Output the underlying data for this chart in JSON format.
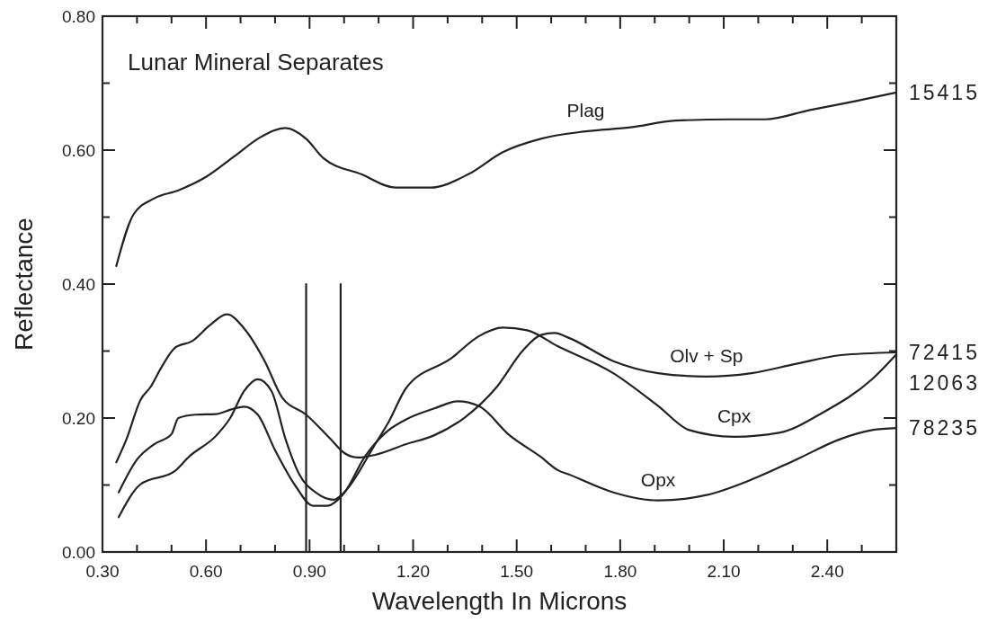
{
  "chart_data": {
    "type": "line",
    "title": "Lunar Mineral Separates",
    "xlabel": "Wavelength In Microns",
    "ylabel": "Reflectance",
    "xlim": [
      0.3,
      2.6
    ],
    "ylim": [
      0,
      0.8
    ],
    "xticks": [
      {
        "value": 0.3,
        "label": "0.30"
      },
      {
        "value": 0.4,
        "label": null
      },
      {
        "value": 0.5,
        "label": null
      },
      {
        "value": 0.6,
        "label": "0.60"
      },
      {
        "value": 0.7,
        "label": null
      },
      {
        "value": 0.8,
        "label": null
      },
      {
        "value": 0.9,
        "label": "0.90"
      },
      {
        "value": 1.0,
        "label": null
      },
      {
        "value": 1.1,
        "label": null
      },
      {
        "value": 1.2,
        "label": "1.20"
      },
      {
        "value": 1.3,
        "label": null
      },
      {
        "value": 1.4,
        "label": null
      },
      {
        "value": 1.5,
        "label": "1.50"
      },
      {
        "value": 1.6,
        "label": null
      },
      {
        "value": 1.7,
        "label": null
      },
      {
        "value": 1.8,
        "label": "1.80"
      },
      {
        "value": 1.9,
        "label": null
      },
      {
        "value": 2.0,
        "label": null
      },
      {
        "value": 2.1,
        "label": "2.10"
      },
      {
        "value": 2.2,
        "label": null
      },
      {
        "value": 2.3,
        "label": null
      },
      {
        "value": 2.4,
        "label": "2.40"
      },
      {
        "value": 2.5,
        "label": null
      }
    ],
    "yticks": [
      {
        "value": 0,
        "label": "0.00"
      },
      {
        "value": 0.1,
        "label": null
      },
      {
        "value": 0.2,
        "label": "0.20"
      },
      {
        "value": 0.3,
        "label": null
      },
      {
        "value": 0.4,
        "label": "0.40"
      },
      {
        "value": 0.5,
        "label": null
      },
      {
        "value": 0.6,
        "label": "0.60"
      },
      {
        "value": 0.7,
        "label": null
      },
      {
        "value": 0.8,
        "label": "0.80"
      }
    ],
    "grid": false,
    "marker": "none",
    "line_style": "solid",
    "series": [
      {
        "name": "Plag",
        "color": "#222222",
        "x": [
          0.34,
          0.39,
          0.45,
          0.52,
          0.6,
          0.68,
          0.76,
          0.83,
          0.89,
          0.94,
          1.05,
          1.15,
          1.25,
          1.36,
          1.46,
          1.57,
          1.7,
          1.83,
          1.96,
          2.12,
          2.22,
          2.35,
          2.48,
          2.6
        ],
        "values": [
          0.427,
          0.504,
          0.528,
          0.54,
          0.56,
          0.59,
          0.62,
          0.633,
          0.617,
          0.588,
          0.564,
          0.544,
          0.544,
          0.564,
          0.597,
          0.617,
          0.628,
          0.634,
          0.644,
          0.646,
          0.646,
          0.66,
          0.673,
          0.686
        ]
      },
      {
        "name": "Olv + Sp",
        "color": "#222222",
        "x": [
          0.34,
          0.37,
          0.41,
          0.44,
          0.47,
          0.51,
          0.56,
          0.61,
          0.66,
          0.71,
          0.77,
          0.82,
          0.89,
          0.96,
          1.0,
          1.04,
          1.09,
          1.18,
          1.26,
          1.35,
          1.44,
          1.52,
          1.57,
          1.61,
          1.65,
          1.78,
          1.91,
          2.05,
          2.18,
          2.31,
          2.44,
          2.6
        ],
        "values": [
          0.134,
          0.169,
          0.227,
          0.247,
          0.275,
          0.305,
          0.315,
          0.338,
          0.355,
          0.334,
          0.285,
          0.231,
          0.205,
          0.169,
          0.148,
          0.141,
          0.145,
          0.161,
          0.174,
          0.201,
          0.245,
          0.302,
          0.324,
          0.327,
          0.32,
          0.285,
          0.267,
          0.262,
          0.267,
          0.281,
          0.294,
          0.298
        ]
      },
      {
        "name": "Cpx",
        "color": "#222222",
        "x": [
          0.347,
          0.41,
          0.51,
          0.55,
          0.63,
          0.67,
          0.71,
          0.75,
          0.79,
          0.83,
          0.87,
          0.92,
          0.97,
          1.0,
          1.09,
          1.13,
          1.18,
          1.31,
          1.39,
          1.46,
          1.53,
          1.62,
          1.78,
          1.91,
          2.0,
          2.13,
          2.26,
          2.39,
          2.53,
          2.6
        ],
        "values": [
          0.052,
          0.101,
          0.121,
          0.142,
          0.174,
          0.2,
          0.24,
          0.258,
          0.24,
          0.169,
          0.116,
          0.088,
          0.078,
          0.089,
          0.161,
          0.195,
          0.245,
          0.289,
          0.322,
          0.335,
          0.331,
          0.307,
          0.267,
          0.218,
          0.182,
          0.172,
          0.178,
          0.209,
          0.258,
          0.295
        ]
      },
      {
        "name": "Opx",
        "color": "#222222",
        "x": [
          0.347,
          0.4,
          0.45,
          0.5,
          0.52,
          0.57,
          0.63,
          0.68,
          0.71,
          0.75,
          0.8,
          0.86,
          0.91,
          0.95,
          1.0,
          1.06,
          1.12,
          1.18,
          1.26,
          1.33,
          1.39,
          1.48,
          1.57,
          1.62,
          1.65,
          1.78,
          1.91,
          2.05,
          2.18,
          2.31,
          2.44,
          2.53,
          2.6
        ],
        "values": [
          0.089,
          0.138,
          0.161,
          0.176,
          0.2,
          0.205,
          0.206,
          0.214,
          0.217,
          0.205,
          0.152,
          0.098,
          0.069,
          0.069,
          0.088,
          0.142,
          0.178,
          0.198,
          0.214,
          0.225,
          0.218,
          0.174,
          0.142,
          0.122,
          0.116,
          0.089,
          0.077,
          0.085,
          0.108,
          0.138,
          0.169,
          0.182,
          0.185
        ]
      },
      {
        "color": "#222222",
        "x": [
          0.89,
          0.89
        ],
        "values": [
          0,
          0.4
        ]
      },
      {
        "color": "#222222",
        "x": [
          0.99,
          0.99
        ],
        "values": [
          0,
          0.4
        ]
      }
    ],
    "annotations": [
      "15415",
      "72415",
      "12063",
      "78235"
    ]
  }
}
